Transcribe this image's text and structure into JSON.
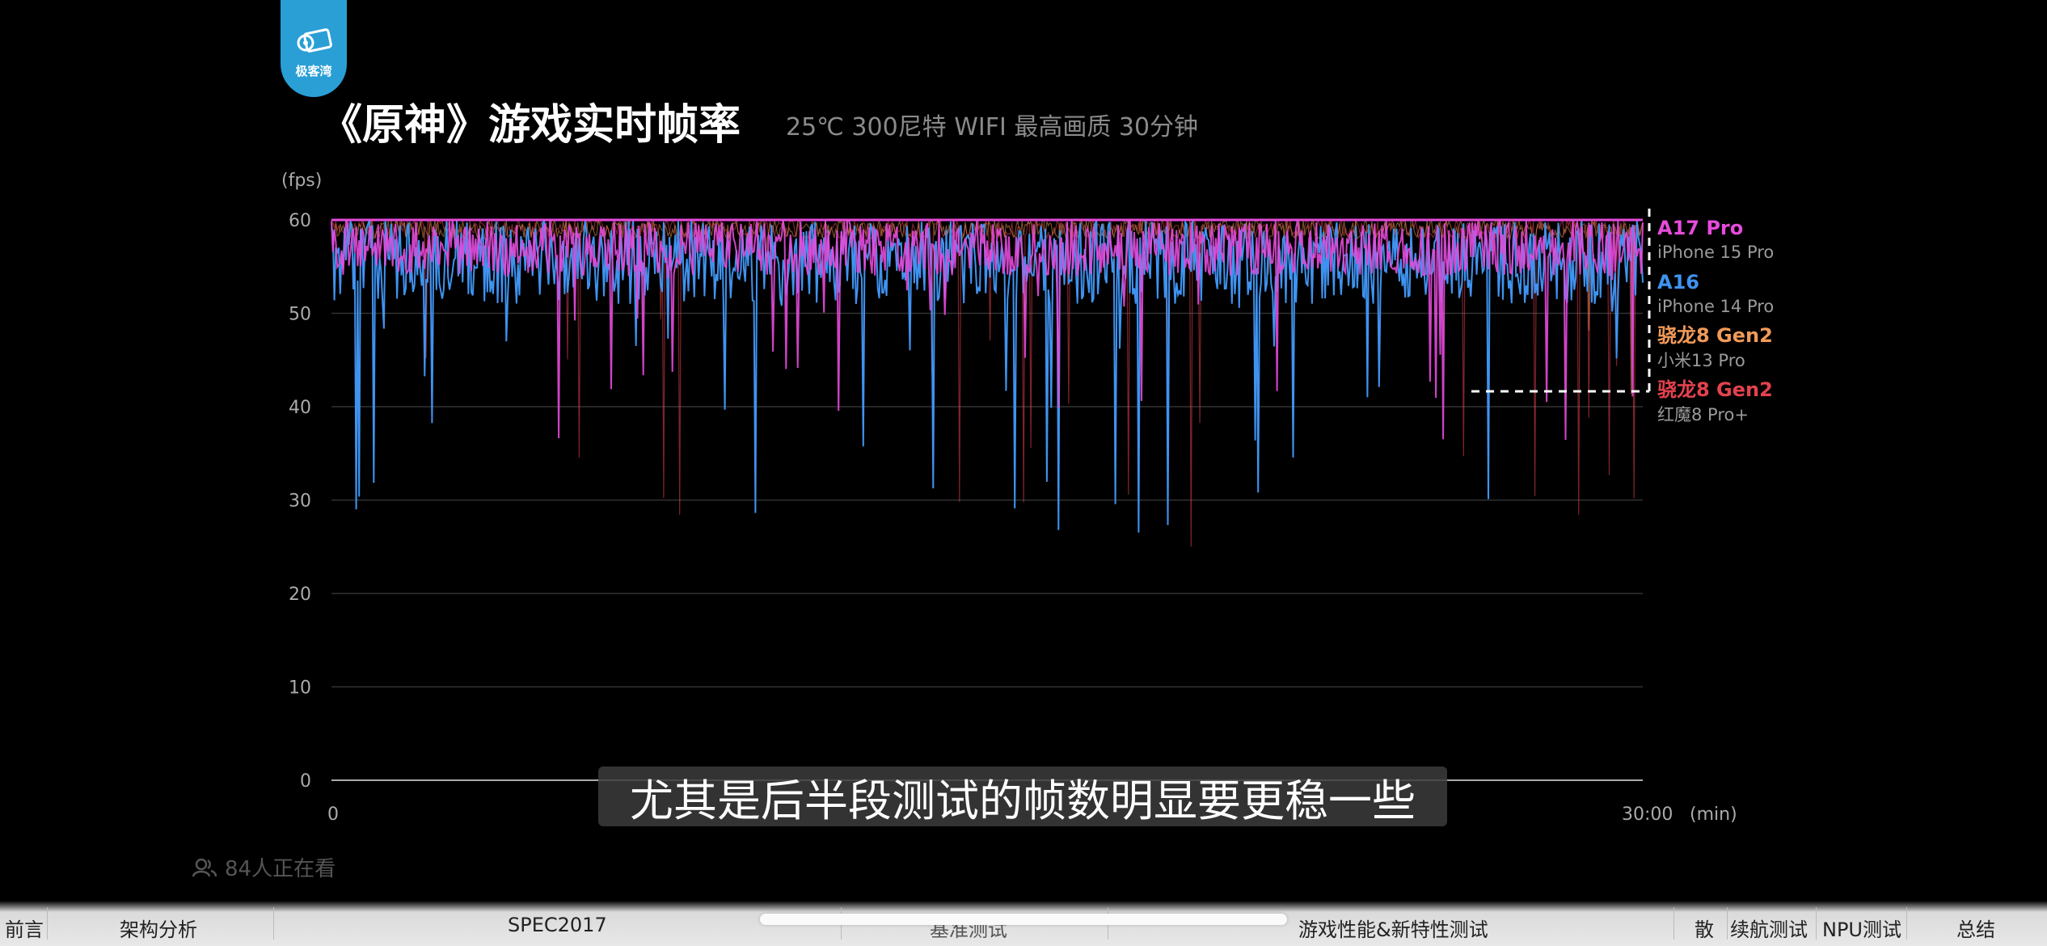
{
  "logo": {
    "text": "极客湾"
  },
  "header": {
    "title": "《原神》游戏实时帧率",
    "subtitle": "25℃ 300尼特 WIFI 最高画质 30分钟"
  },
  "chart_data": {
    "type": "line",
    "title": "《原神》游戏实时帧率",
    "ylabel": "(fps)",
    "xlabel": "(min)",
    "ylim": [
      0,
      60
    ],
    "yticks": [
      0,
      10,
      20,
      30,
      40,
      50,
      60
    ],
    "xticks": [
      "0",
      "30:00"
    ],
    "grid": true,
    "legend_placement": "right",
    "series": [
      {
        "name": "A17 Pro",
        "device": "iPhone 15 Pro",
        "color": "#e64bdc"
      },
      {
        "name": "A16",
        "device": "iPhone 14 Pro",
        "color": "#3f93f0"
      },
      {
        "name": "骁龙8 Gen2",
        "device": "小米13 Pro",
        "color": "#f09a58"
      },
      {
        "name": "骁龙8 Gen2",
        "device": "红魔8 Pro+",
        "color": "#e3424e"
      }
    ]
  },
  "caption": "尤其是后半段测试的帧数明显要更稳一些",
  "viewers": "84人正在看",
  "chapters": [
    {
      "label": "前言"
    },
    {
      "label": "架构分析"
    },
    {
      "label": "SPEC2017"
    },
    {
      "label": "基准测试"
    },
    {
      "label": "游戏性能&新特性测试"
    },
    {
      "label": "散"
    },
    {
      "label": "续航测试"
    },
    {
      "label": "NPU测试"
    },
    {
      "label": "总结"
    }
  ],
  "colors": {
    "accent": "#2a9fd6",
    "background": "#000000"
  }
}
